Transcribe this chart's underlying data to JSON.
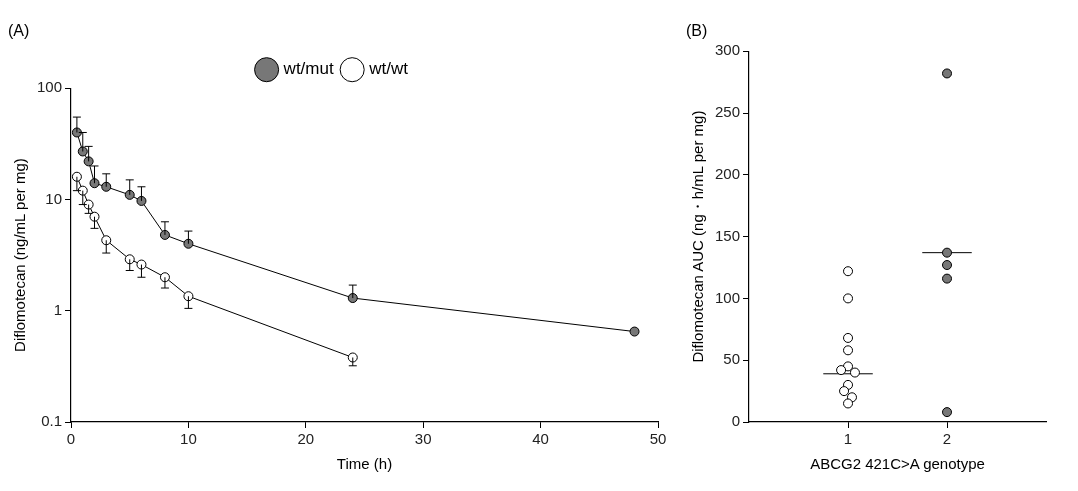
{
  "chart_data": [
    {
      "type": "line",
      "title": "(A)",
      "xlabel": "Time (h)",
      "ylabel": "Diflomotecan (ng/mL per mg)",
      "log": "y",
      "grid": false,
      "legend": "top",
      "marker": "circle",
      "line_style": "solid",
      "xlim": [
        0,
        50
      ],
      "xticks": [
        0,
        10,
        20,
        30,
        40,
        50
      ],
      "ylim": [
        0.1,
        100
      ],
      "yticks": [
        0.1,
        1,
        10,
        100
      ],
      "series": [
        {
          "name": "wt/mut",
          "color": "#777777",
          "x": [
            0.5,
            1,
            1.5,
            2,
            3,
            5,
            6,
            8,
            10,
            24,
            48
          ],
          "values": [
            40,
            27,
            22,
            14,
            13,
            11,
            9.7,
            4.8,
            4,
            1.3,
            0.65
          ],
          "errors": [
            [
              40,
              55
            ],
            [
              27,
              40
            ],
            [
              22,
              30
            ],
            [
              14,
              20
            ],
            [
              13,
              17
            ],
            [
              11,
              15
            ],
            [
              9.7,
              13
            ],
            [
              4.8,
              6.3
            ],
            [
              4,
              5.2
            ],
            [
              1.3,
              1.7
            ],
            null
          ]
        },
        {
          "name": "wt/wt",
          "color": "#ffffff",
          "x": [
            0.5,
            1,
            1.5,
            2,
            3,
            5,
            6,
            8,
            10,
            24
          ],
          "values": [
            16,
            12,
            9,
            7,
            4.3,
            2.9,
            2.6,
            2,
            1.35,
            0.38
          ],
          "errors": [
            [
              12,
              16
            ],
            [
              9,
              12
            ],
            [
              7.5,
              9
            ],
            [
              5.5,
              7
            ],
            [
              3.3,
              4.3
            ],
            [
              2.3,
              2.9
            ],
            [
              2,
              2.6
            ],
            [
              1.6,
              2
            ],
            [
              1.05,
              1.35
            ],
            [
              0.32,
              0.38
            ]
          ]
        }
      ]
    },
    {
      "type": "scatter",
      "title": "(B)",
      "xlabel": "ABCG2 421C>A genotype",
      "ylabel": "Diflomotecan AUC (ng・h/mL per mg)",
      "grid": false,
      "marker": "circle",
      "xlim": [
        0,
        3
      ],
      "xticks": [
        1,
        2
      ],
      "ylim": [
        0,
        300
      ],
      "yticks": [
        0,
        50,
        100,
        150,
        200,
        250,
        300
      ],
      "series": [
        {
          "color": "#ffffff",
          "x": [
            1,
            1,
            1,
            1,
            1,
            0.93,
            1.07,
            1,
            0.96,
            1.04,
            1
          ],
          "values": [
            122,
            100,
            68,
            58,
            45,
            42,
            40,
            30,
            25,
            20,
            15
          ]
        },
        {
          "color": "#777777",
          "x": [
            2,
            2,
            2,
            2,
            2
          ],
          "values": [
            282,
            137,
            127,
            116,
            8
          ]
        },
        {
          "type": "line",
          "color": "#000000",
          "marker": "none",
          "x": [
            0.75,
            1.25
          ],
          "values": [
            39,
            39
          ]
        },
        {
          "type": "line",
          "color": "#000000",
          "marker": "none",
          "x": [
            1.75,
            2.25
          ],
          "values": [
            137,
            137
          ]
        }
      ]
    }
  ]
}
